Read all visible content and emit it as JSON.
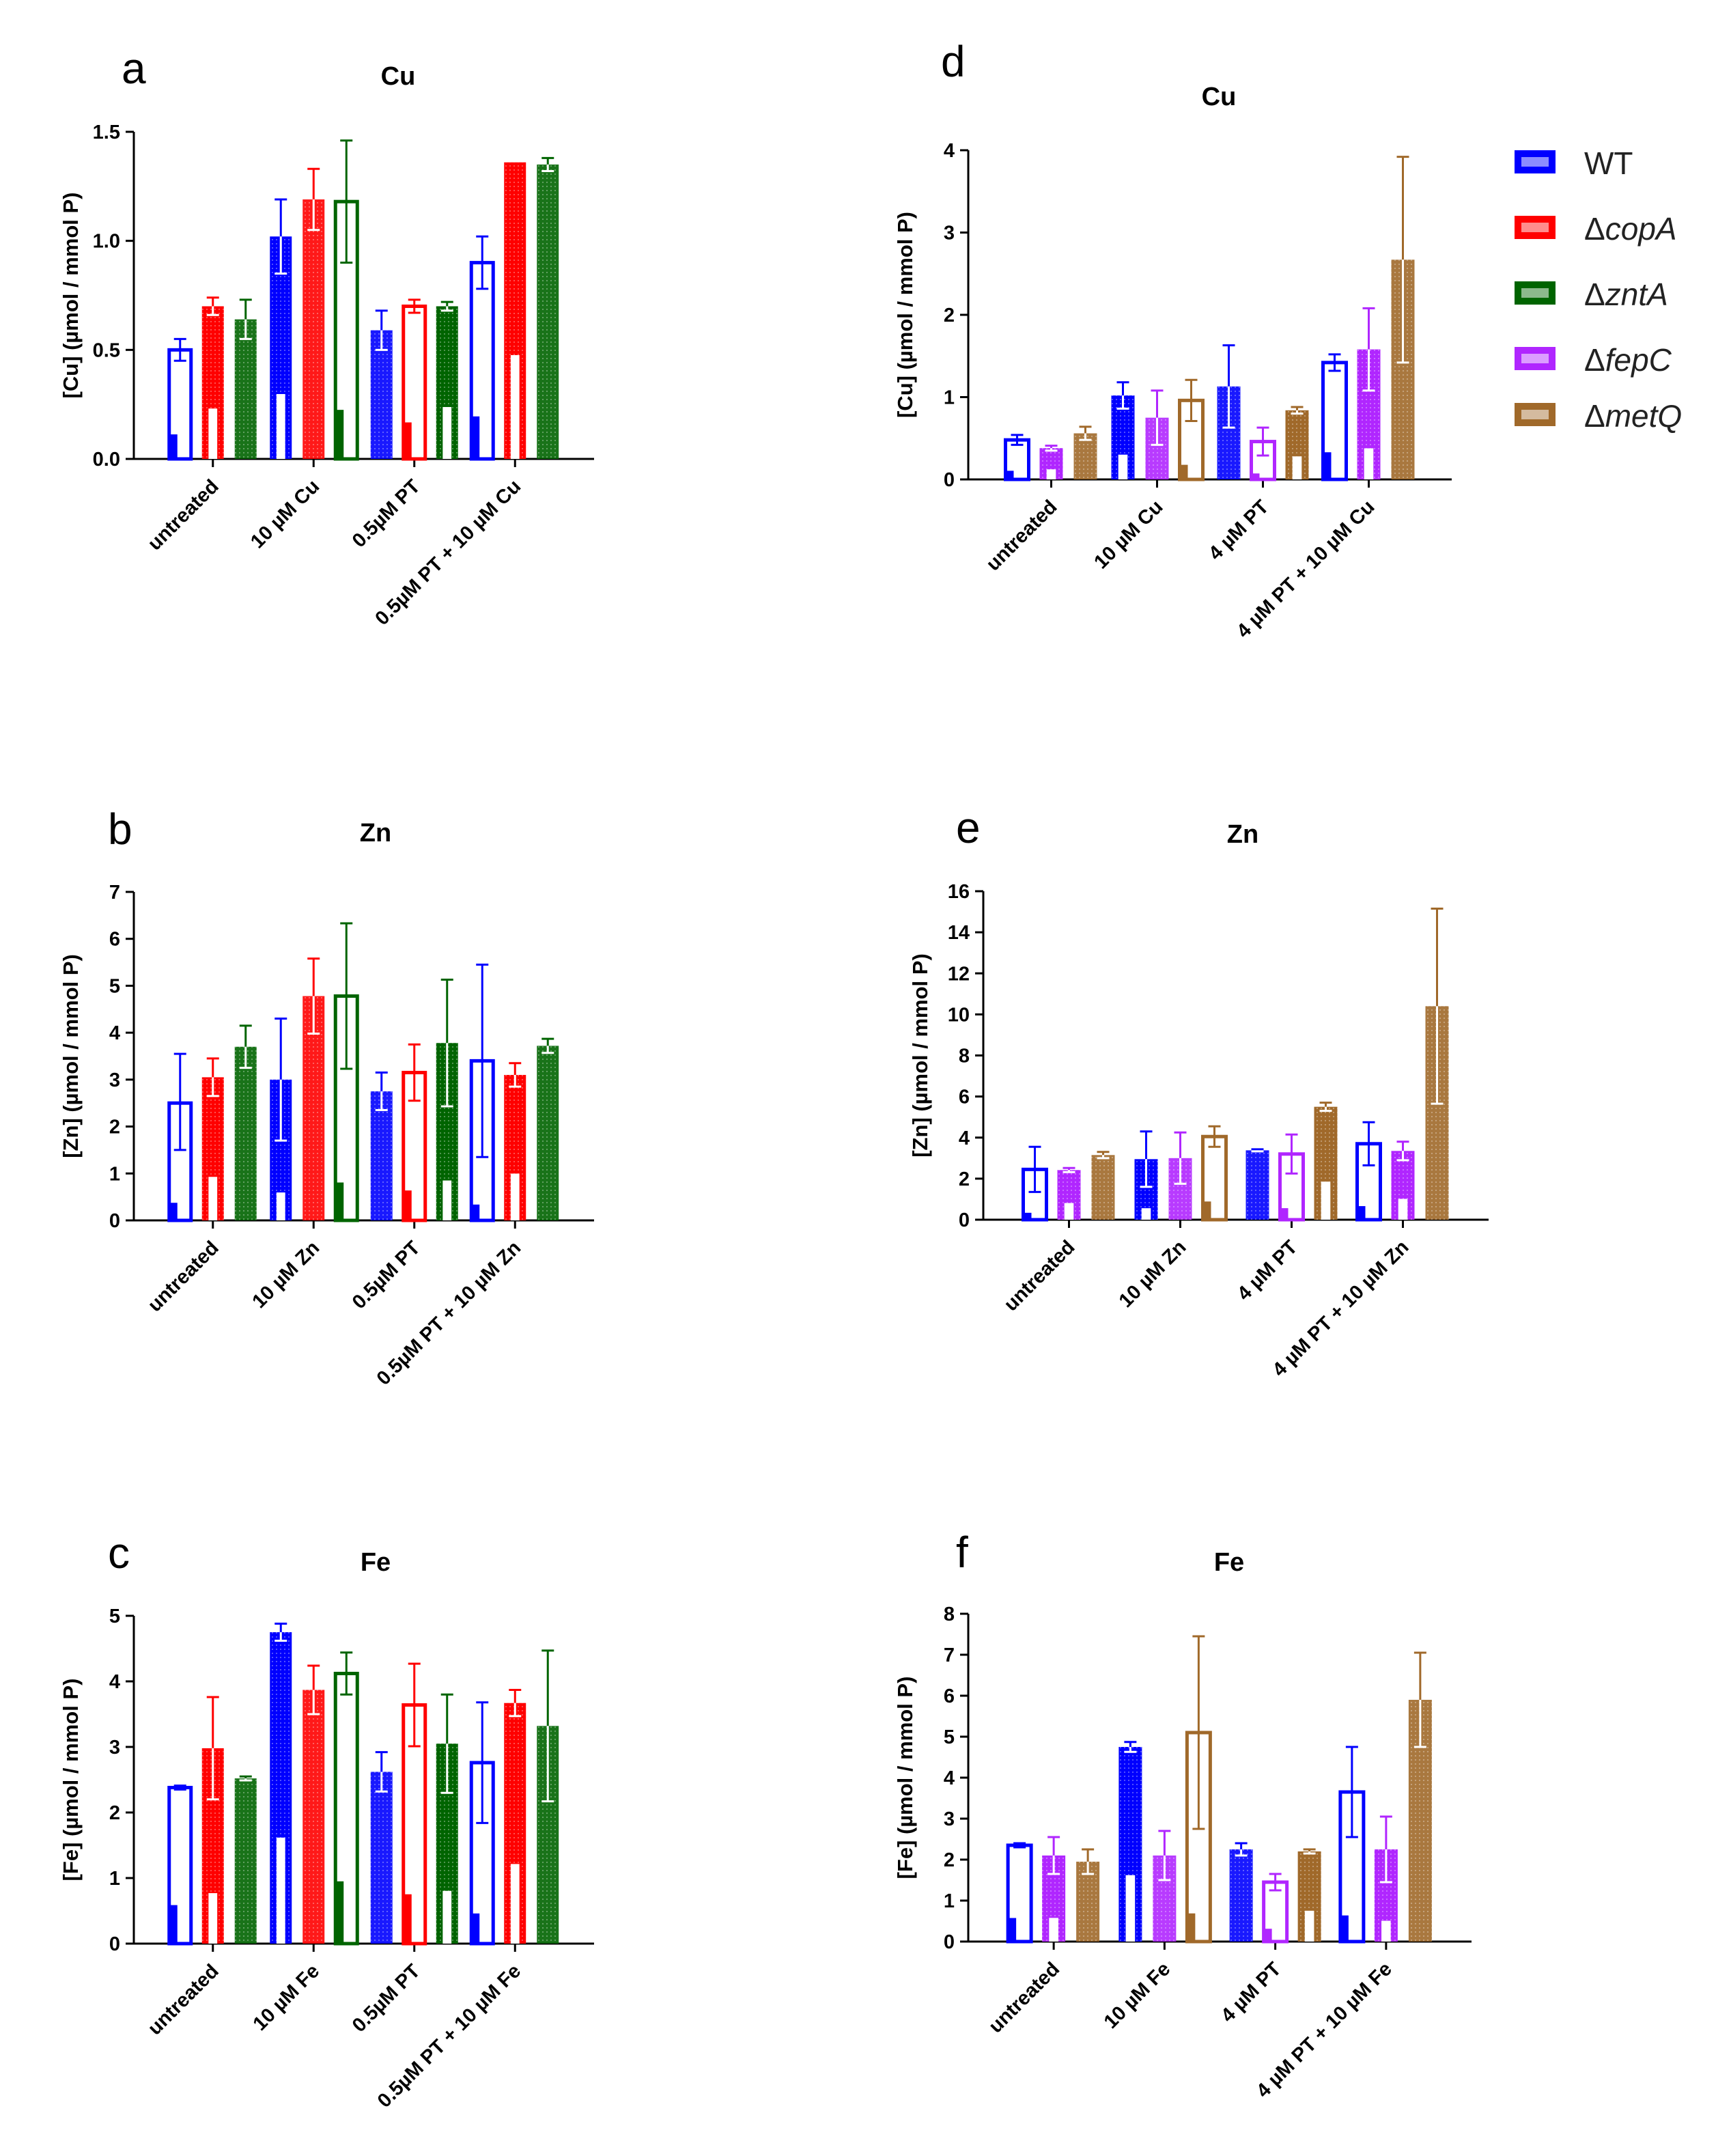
{
  "legend": [
    {
      "name": "WT",
      "delta": "",
      "gene": "WT",
      "color": "#0000ff"
    },
    {
      "name": "ΔcopA",
      "delta": "Δ",
      "gene": "copA",
      "color": "#ff0000"
    },
    {
      "name": "ΔzntA",
      "delta": "Δ",
      "gene": "zntA",
      "color": "#006400"
    },
    {
      "name": "ΔfepC",
      "delta": "Δ",
      "gene": "fepC",
      "color": "#b026ff"
    },
    {
      "name": "ΔmetQ",
      "delta": "Δ",
      "gene": "metQ",
      "color": "#a0692a"
    }
  ],
  "chart_data": [
    {
      "panel": "a",
      "type": "bar",
      "title": "Cu",
      "ylabel": "[Cu] (µmol / mmol P)",
      "ylim": [
        0,
        1.5
      ],
      "yticks": [
        0.0,
        0.5,
        1.0,
        1.5
      ],
      "ytick_labels": [
        "0.0",
        "0.5",
        "1.0",
        "1.5"
      ],
      "categories": [
        "untreated",
        "10 µM Cu",
        "0.5µM PT",
        "0.5µM PT + 10 µM Cu"
      ],
      "series": [
        {
          "name": "WT",
          "color": "#0000ff",
          "values": [
            0.5,
            1.02,
            0.59,
            0.9
          ],
          "errors": [
            0.05,
            0.17,
            0.09,
            0.12
          ],
          "lower": [
            0.45,
            0.85,
            0.5,
            0.78
          ]
        },
        {
          "name": "ΔcopA",
          "color": "#ff0000",
          "values": [
            0.7,
            1.19,
            0.7,
            1.36
          ],
          "errors": [
            0.04,
            0.14,
            0.03,
            0.0
          ],
          "lower": [
            0.66,
            1.05,
            0.67,
            1.36
          ]
        },
        {
          "name": "ΔzntA",
          "color": "#006400",
          "values": [
            0.64,
            1.18,
            0.7,
            1.35
          ],
          "errors": [
            0.09,
            0.28,
            0.02,
            0.03
          ],
          "lower": [
            0.55,
            0.9,
            0.68,
            1.32
          ]
        }
      ]
    },
    {
      "panel": "b",
      "type": "bar",
      "title": "Zn",
      "ylabel": "[Zn] (µmol / mmol P)",
      "ylim": [
        0,
        7
      ],
      "yticks": [
        0,
        1,
        2,
        3,
        4,
        5,
        6,
        7
      ],
      "ytick_labels": [
        "0",
        "1",
        "2",
        "3",
        "4",
        "5",
        "6",
        "7"
      ],
      "categories": [
        "untreated",
        "10 µM Zn",
        "0.5µM PT",
        "0.5µM PT + 10 µM Zn"
      ],
      "series": [
        {
          "name": "WT",
          "color": "#0000ff",
          "values": [
            2.5,
            3.0,
            2.75,
            3.4
          ],
          "errors": [
            1.05,
            1.3,
            0.4,
            2.05
          ],
          "lower": [
            1.5,
            1.7,
            2.35,
            1.35
          ]
        },
        {
          "name": "ΔcopA",
          "color": "#ff0000",
          "values": [
            3.05,
            4.78,
            3.15,
            3.1
          ],
          "errors": [
            0.4,
            0.8,
            0.6,
            0.25
          ],
          "lower": [
            2.65,
            3.98,
            2.55,
            2.85
          ]
        },
        {
          "name": "ΔzntA",
          "color": "#006400",
          "values": [
            3.7,
            4.78,
            3.78,
            3.72
          ],
          "errors": [
            0.45,
            1.55,
            1.35,
            0.15
          ],
          "lower": [
            3.25,
            3.23,
            2.43,
            3.57
          ]
        }
      ]
    },
    {
      "panel": "c",
      "type": "bar",
      "title": "Fe",
      "ylabel": "[Fe] (µmol / mmol P)",
      "ylim": [
        0,
        5
      ],
      "yticks": [
        0,
        1,
        2,
        3,
        4,
        5
      ],
      "ytick_labels": [
        "0",
        "1",
        "2",
        "3",
        "4",
        "5"
      ],
      "categories": [
        "untreated",
        "10 µM Fe",
        "0.5µM PT",
        "0.5µM PT + 10 µM Fe"
      ],
      "series": [
        {
          "name": "WT",
          "color": "#0000ff",
          "values": [
            2.38,
            4.75,
            2.62,
            2.76
          ],
          "errors": [
            0.03,
            0.13,
            0.3,
            0.92
          ],
          "lower": [
            2.35,
            4.62,
            2.32,
            1.84
          ]
        },
        {
          "name": "ΔcopA",
          "color": "#ff0000",
          "values": [
            2.98,
            3.87,
            3.64,
            3.67
          ],
          "errors": [
            0.78,
            0.37,
            0.63,
            0.2
          ],
          "lower": [
            2.2,
            3.5,
            3.01,
            3.47
          ]
        },
        {
          "name": "ΔzntA",
          "color": "#006400",
          "values": [
            2.52,
            4.12,
            3.05,
            3.32
          ],
          "errors": [
            0.03,
            0.32,
            0.75,
            1.15
          ],
          "lower": [
            2.49,
            3.8,
            2.3,
            2.17
          ]
        }
      ]
    },
    {
      "panel": "d",
      "type": "bar",
      "title": "Cu",
      "ylabel": "[Cu] (µmol / mmol P)",
      "ylim": [
        0,
        4
      ],
      "yticks": [
        0,
        1,
        2,
        3,
        4
      ],
      "ytick_labels": [
        "0",
        "1",
        "2",
        "3",
        "4"
      ],
      "categories": [
        "untreated",
        "10 µM Cu",
        "4 µM PT",
        "4 µM PT + 10 µM Cu"
      ],
      "series": [
        {
          "name": "WT",
          "color": "#0000ff",
          "values": [
            0.48,
            1.02,
            1.13,
            1.42
          ],
          "errors": [
            0.06,
            0.16,
            0.5,
            0.1
          ],
          "lower": [
            0.42,
            0.86,
            0.63,
            1.32
          ]
        },
        {
          "name": "ΔfepC",
          "color": "#b026ff",
          "values": [
            0.38,
            0.75,
            0.46,
            1.58
          ],
          "errors": [
            0.03,
            0.33,
            0.17,
            0.5
          ],
          "lower": [
            0.35,
            0.42,
            0.29,
            1.08
          ]
        },
        {
          "name": "ΔmetQ",
          "color": "#a0692a",
          "values": [
            0.56,
            0.96,
            0.84,
            2.67
          ],
          "errors": [
            0.08,
            0.25,
            0.04,
            1.25
          ],
          "lower": [
            0.48,
            0.71,
            0.8,
            1.42
          ]
        }
      ]
    },
    {
      "panel": "e",
      "type": "bar",
      "title": "Zn",
      "ylabel": "[Zn] (µmol / mmol P)",
      "ylim": [
        0,
        16
      ],
      "yticks": [
        0,
        2,
        4,
        6,
        8,
        10,
        12,
        14,
        16
      ],
      "ytick_labels": [
        "0",
        "2",
        "4",
        "6",
        "8",
        "10",
        "12",
        "14",
        "16"
      ],
      "categories": [
        "untreated",
        "10 µM Zn",
        "4 µM PT",
        "4 µM PT + 10 µM Zn"
      ],
      "series": [
        {
          "name": "WT",
          "color": "#0000ff",
          "values": [
            2.45,
            2.95,
            3.38,
            3.7
          ],
          "errors": [
            1.1,
            1.35,
            0.05,
            1.05
          ],
          "lower": [
            1.35,
            1.6,
            3.33,
            2.65
          ]
        },
        {
          "name": "ΔfepC",
          "color": "#b026ff",
          "values": [
            2.42,
            3.0,
            3.2,
            3.35
          ],
          "errors": [
            0.1,
            1.25,
            0.95,
            0.45
          ],
          "lower": [
            2.32,
            1.75,
            2.25,
            2.9
          ]
        },
        {
          "name": "ΔmetQ",
          "color": "#a0692a",
          "values": [
            3.15,
            4.05,
            5.5,
            10.4
          ],
          "errors": [
            0.15,
            0.5,
            0.2,
            4.75
          ],
          "lower": [
            3.0,
            3.55,
            5.3,
            5.65
          ]
        }
      ]
    },
    {
      "panel": "f",
      "type": "bar",
      "title": "Fe",
      "ylabel": "[Fe] (µmol / mmol P)",
      "ylim": [
        0,
        8
      ],
      "yticks": [
        0,
        1,
        2,
        3,
        4,
        5,
        6,
        7,
        8
      ],
      "ytick_labels": [
        "0",
        "1",
        "2",
        "3",
        "4",
        "5",
        "6",
        "7",
        "8"
      ],
      "categories": [
        "untreated",
        "10 µM Fe",
        "4 µM PT",
        "4 µM PT + 10 µM Fe"
      ],
      "series": [
        {
          "name": "WT",
          "color": "#0000ff",
          "values": [
            2.35,
            4.75,
            2.25,
            3.65
          ],
          "errors": [
            0.05,
            0.12,
            0.15,
            1.1
          ],
          "lower": [
            2.3,
            4.63,
            2.1,
            2.55
          ]
        },
        {
          "name": "ΔfepC",
          "color": "#b026ff",
          "values": [
            2.1,
            2.1,
            1.45,
            2.25
          ],
          "errors": [
            0.45,
            0.6,
            0.2,
            0.8
          ],
          "lower": [
            1.65,
            1.5,
            1.25,
            1.45
          ]
        },
        {
          "name": "ΔmetQ",
          "color": "#a0692a",
          "values": [
            1.95,
            5.1,
            2.2,
            5.9
          ],
          "errors": [
            0.3,
            2.35,
            0.05,
            1.15
          ],
          "lower": [
            1.65,
            2.75,
            2.15,
            4.75
          ]
        }
      ]
    }
  ]
}
